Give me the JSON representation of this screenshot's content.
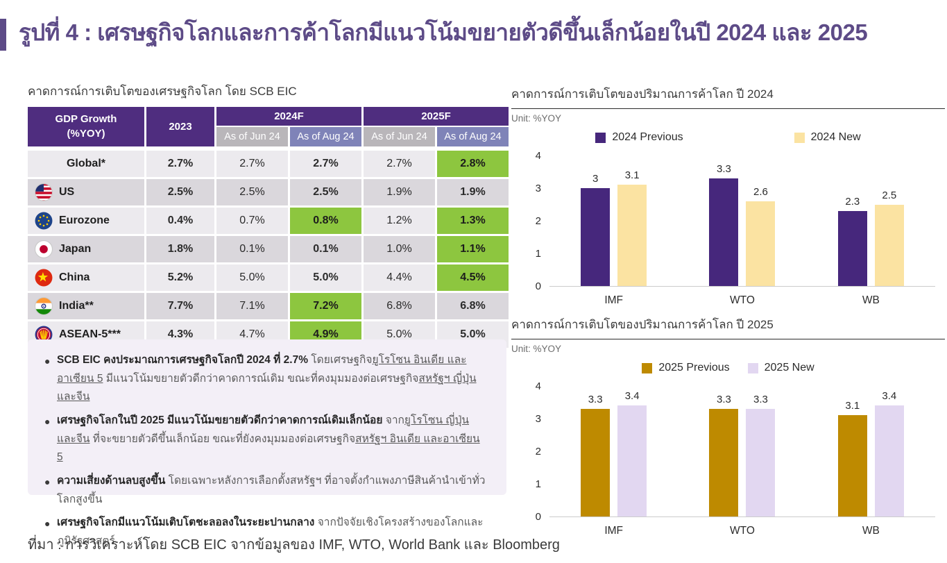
{
  "title": "รูปที่ 4 : เศรษฐกิจโลกและการค้าโลกมีแนวโน้มขยายตัวดีขึ้นเล็กน้อยในปี 2024 และ 2025",
  "accent_color": "#5d4b87",
  "table": {
    "title": "คาดการณ์การเติบโตของเศรษฐกิจโลก โดย SCB EIC",
    "header_label_line1": "GDP Growth",
    "header_label_line2": "(%YOY)",
    "year_col": "2023",
    "groups": [
      "2024F",
      "2025F"
    ],
    "subheaders": [
      "As of Jun 24",
      "As of Aug 24",
      "As of Jun 24",
      "As of Aug 24"
    ],
    "highlight_color": "#8dc63f",
    "rows": [
      {
        "name": "Global*",
        "flag": null,
        "values": [
          "2.7%",
          "2.7%",
          "2.7%",
          "2.7%",
          "2.8%"
        ],
        "green": [
          4
        ]
      },
      {
        "name": "US",
        "flag": "us",
        "values": [
          "2.5%",
          "2.5%",
          "2.5%",
          "1.9%",
          "1.9%"
        ],
        "green": []
      },
      {
        "name": "Eurozone",
        "flag": "eu",
        "values": [
          "0.4%",
          "0.7%",
          "0.8%",
          "1.2%",
          "1.3%"
        ],
        "green": [
          2,
          4
        ]
      },
      {
        "name": "Japan",
        "flag": "jp",
        "values": [
          "1.8%",
          "0.1%",
          "0.1%",
          "1.0%",
          "1.1%"
        ],
        "green": [
          4
        ]
      },
      {
        "name": "China",
        "flag": "cn",
        "values": [
          "5.2%",
          "5.0%",
          "5.0%",
          "4.4%",
          "4.5%"
        ],
        "green": [
          4
        ]
      },
      {
        "name": "India**",
        "flag": "in",
        "values": [
          "7.7%",
          "7.1%",
          "7.2%",
          "6.8%",
          "6.8%"
        ],
        "green": [
          2
        ]
      },
      {
        "name": "ASEAN-5***",
        "flag": "asean",
        "values": [
          "4.3%",
          "4.7%",
          "4.9%",
          "5.0%",
          "5.0%"
        ],
        "green": [
          2
        ]
      }
    ]
  },
  "bullets": [
    {
      "segments": [
        {
          "text": "SCB EIC คงประมาณการเศรษฐกิจโลกปี 2024 ที่ 2.7% ",
          "bold": true
        },
        {
          "text": "โดยเศรษฐกิจ"
        },
        {
          "text": "ยูโรโซน อินเดีย และอาเซียน 5",
          "underline": true
        },
        {
          "text": " มีแนวโน้มขยายตัวดีกว่าคาดการณ์เดิม ขณะที่คงมุมมองต่อเศรษฐกิจ"
        },
        {
          "text": "สหรัฐฯ ญี่ปุ่น และจีน",
          "underline": true
        }
      ]
    },
    {
      "segments": [
        {
          "text": "เศรษฐกิจโลกในปี 2025 มีแนวโน้มขยายตัวดีกว่าคาดการณ์เดิมเล็กน้อย ",
          "bold": true
        },
        {
          "text": "จาก"
        },
        {
          "text": "ยูโรโซน ญี่ปุ่น และจีน",
          "underline": true
        },
        {
          "text": " ที่จะขยายตัวดีขึ้นเล็กน้อย ขณะที่ยังคงมุมมองต่อเศรษฐกิจ"
        },
        {
          "text": "สหรัฐฯ อินเดีย และอาเซียน 5",
          "underline": true
        }
      ]
    },
    {
      "segments": [
        {
          "text": "ความเสี่ยงด้านลบสูงขึ้น ",
          "bold": true
        },
        {
          "text": "โดยเฉพาะหลังการเลือกตั้งสหรัฐฯ ที่อาจตั้งกำแพงภาษีสินค้านำเข้าทั่วโลกสูงขึ้น"
        }
      ]
    },
    {
      "segments": [
        {
          "text": "เศรษฐกิจโลกมีแนวโน้มเติบโตชะลอลงในระยะปานกลาง ",
          "bold": true
        },
        {
          "text": "จากปัจจัยเชิงโครงสร้างของโลกและภูมิรัฐศาสตร์"
        }
      ]
    }
  ],
  "chart_data": [
    {
      "type": "bar",
      "title": "คาดการณ์การเติบโตของปริมาณการค้าโลก ปี 2024",
      "unit_label": "Unit: %YOY",
      "categories": [
        "IMF",
        "WTO",
        "WB"
      ],
      "series": [
        {
          "name": "2024 Previous",
          "color": "#46277c",
          "values": [
            3,
            3.3,
            2.3
          ]
        },
        {
          "name": "2024 New",
          "color": "#fbe3a2",
          "values": [
            3.1,
            2.6,
            2.5
          ]
        }
      ],
      "ylim": [
        0,
        4
      ],
      "yticks": [
        0,
        1,
        2,
        3,
        4
      ],
      "legend_position": "top",
      "grid": false
    },
    {
      "type": "bar",
      "title": "คาดการณ์การเติบโตของปริมาณการค้าโลก ปี 2025",
      "unit_label": "Unit: %YOY",
      "categories": [
        "IMF",
        "WTO",
        "WB"
      ],
      "series": [
        {
          "name": "2025 Previous",
          "color": "#be8a00",
          "values": [
            3.3,
            3.3,
            3.1
          ]
        },
        {
          "name": "2025 New",
          "color": "#e2d7f1",
          "values": [
            3.4,
            3.3,
            3.4
          ]
        }
      ],
      "ylim": [
        0,
        4
      ],
      "yticks": [
        0,
        1,
        2,
        3,
        4
      ],
      "legend_position": "top",
      "grid": false
    }
  ],
  "source": "ที่มา : การวิเคราะห์โดย SCB EIC จากข้อมูลของ IMF, WTO, World Bank และ Bloomberg"
}
